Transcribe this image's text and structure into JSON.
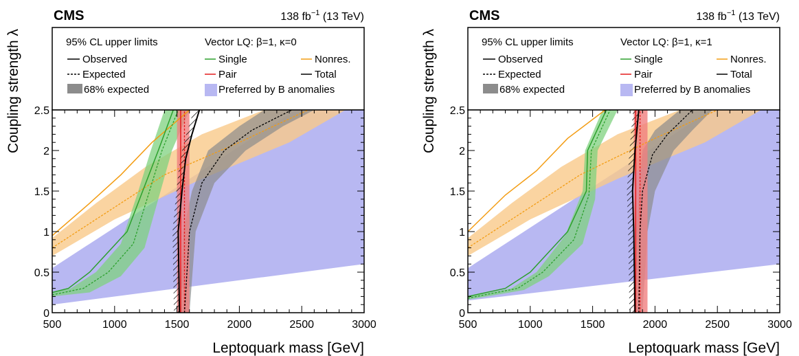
{
  "colors": {
    "single": "#2ca02c",
    "single_band": "#7fd17f",
    "pair": "#e41a1c",
    "pair_band": "#f08080",
    "nonres": "#f39c12",
    "nonres_band": "#f9c98a",
    "total": "#000000",
    "total_band": "#8c8c8c",
    "banom": "#b8b8f2"
  },
  "chart_data": [
    {
      "type": "line",
      "experiment": "CMS",
      "lumi_text": "138 fb",
      "lumi_sup": "−1",
      "energy_text": " (13 TeV)",
      "xlabel": "Leptoquark mass [GeV]",
      "ylabel": "Coupling strength λ",
      "xlim": [
        500,
        3000
      ],
      "ylim": [
        0,
        2.5
      ],
      "x_ticks": [
        "500",
        "1000",
        "1500",
        "2000",
        "2500",
        "3000"
      ],
      "y_ticks": [
        "0",
        "0.5",
        "1",
        "1.5",
        "2",
        "2.5"
      ],
      "legend": {
        "header_left": "95% CL upper limits",
        "header_right": "Vector LQ: β=1, κ=0",
        "observed": "Observed",
        "expected": "Expected",
        "band68": "68% expected",
        "single": "Single",
        "pair": "Pair",
        "nonres": "Nonres.",
        "total": "Total",
        "banom": "Preferred by B anomalies"
      },
      "banom": {
        "lower": [
          [
            500,
            0.1
          ],
          [
            3000,
            0.6
          ]
        ],
        "upper": [
          [
            500,
            0.55
          ],
          [
            2450,
            2.5
          ]
        ],
        "top_right_x": 3000
      },
      "nonres": {
        "obs": [
          [
            500,
            0.95
          ],
          [
            800,
            1.35
          ],
          [
            1050,
            1.7
          ],
          [
            1300,
            2.1
          ],
          [
            1600,
            2.5
          ]
        ],
        "exp": [
          [
            500,
            0.8
          ],
          [
            900,
            1.2
          ],
          [
            1400,
            1.7
          ],
          [
            2000,
            2.1
          ],
          [
            2550,
            2.5
          ]
        ],
        "band_lo": [
          [
            500,
            0.7
          ],
          [
            1000,
            1.15
          ],
          [
            1700,
            1.65
          ],
          [
            2400,
            2.1
          ],
          [
            2850,
            2.5
          ]
        ],
        "band_hi": [
          [
            500,
            0.92
          ],
          [
            850,
            1.35
          ],
          [
            1250,
            1.8
          ],
          [
            1700,
            2.2
          ],
          [
            2200,
            2.5
          ]
        ]
      },
      "single": {
        "obs": [
          [
            500,
            0.25
          ],
          [
            630,
            0.3
          ],
          [
            800,
            0.5
          ],
          [
            1100,
            1.0
          ],
          [
            1350,
            2.0
          ],
          [
            1470,
            2.5
          ]
        ],
        "exp": [
          [
            500,
            0.22
          ],
          [
            750,
            0.3
          ],
          [
            950,
            0.5
          ],
          [
            1150,
            0.85
          ],
          [
            1280,
            1.5
          ],
          [
            1380,
            2.0
          ],
          [
            1510,
            2.5
          ]
        ],
        "band_lo": [
          [
            500,
            0.2
          ],
          [
            800,
            0.25
          ],
          [
            1050,
            0.45
          ],
          [
            1240,
            0.8
          ],
          [
            1350,
            1.4
          ],
          [
            1460,
            2.0
          ],
          [
            1600,
            2.5
          ]
        ],
        "band_hi": [
          [
            500,
            0.25
          ],
          [
            650,
            0.3
          ],
          [
            850,
            0.5
          ],
          [
            1050,
            0.85
          ],
          [
            1190,
            1.5
          ],
          [
            1290,
            2.0
          ],
          [
            1400,
            2.5
          ]
        ]
      },
      "pair": {
        "obs": [
          [
            1530,
            0
          ],
          [
            1530,
            2.5
          ]
        ],
        "exp": [
          [
            1560,
            0
          ],
          [
            1560,
            2.5
          ]
        ],
        "band": [
          1500,
          1600
        ]
      },
      "total": {
        "obs": [
          [
            1520,
            0
          ],
          [
            1510,
            1.0
          ],
          [
            1540,
            1.5
          ],
          [
            1570,
            1.9
          ],
          [
            1620,
            2.2
          ],
          [
            1680,
            2.5
          ]
        ],
        "exp": [
          [
            1560,
            0
          ],
          [
            1600,
            1.0
          ],
          [
            1700,
            1.6
          ],
          [
            1880,
            2.0
          ],
          [
            2100,
            2.25
          ],
          [
            2420,
            2.5
          ]
        ],
        "band_lo": [
          [
            1600,
            0
          ],
          [
            1650,
            1.0
          ],
          [
            1800,
            1.6
          ],
          [
            2050,
            2.0
          ],
          [
            2350,
            2.3
          ],
          [
            2600,
            2.5
          ]
        ],
        "band_hi": [
          [
            1520,
            0
          ],
          [
            1550,
            1.0
          ],
          [
            1620,
            1.5
          ],
          [
            1750,
            2.0
          ],
          [
            2000,
            2.3
          ],
          [
            2200,
            2.5
          ]
        ]
      }
    },
    {
      "type": "line",
      "experiment": "CMS",
      "lumi_text": "138 fb",
      "lumi_sup": "−1",
      "energy_text": " (13 TeV)",
      "xlabel": "Leptoquark mass [GeV]",
      "ylabel": "Coupling strength λ",
      "xlim": [
        500,
        3000
      ],
      "ylim": [
        0,
        2.5
      ],
      "x_ticks": [
        "500",
        "1000",
        "1500",
        "2000",
        "2500",
        "3000"
      ],
      "y_ticks": [
        "0",
        "0.5",
        "1",
        "1.5",
        "2",
        "2.5"
      ],
      "legend": {
        "header_left": "95% CL upper limits",
        "header_right": "Vector LQ: β=1, κ=1",
        "observed": "Observed",
        "expected": "Expected",
        "band68": "68% expected",
        "single": "Single",
        "pair": "Pair",
        "nonres": "Nonres.",
        "total": "Total",
        "banom": "Preferred by B anomalies"
      },
      "banom": {
        "lower": [
          [
            500,
            0.15
          ],
          [
            3000,
            0.6
          ]
        ],
        "upper": [
          [
            500,
            0.55
          ],
          [
            2450,
            2.5
          ]
        ],
        "top_right_x": 3000
      },
      "nonres": {
        "obs": [
          [
            500,
            1.0
          ],
          [
            800,
            1.45
          ],
          [
            1050,
            1.75
          ],
          [
            1300,
            2.15
          ],
          [
            1600,
            2.5
          ]
        ],
        "exp": [
          [
            500,
            0.8
          ],
          [
            900,
            1.2
          ],
          [
            1400,
            1.7
          ],
          [
            2000,
            2.15
          ],
          [
            2500,
            2.5
          ]
        ],
        "band_lo": [
          [
            500,
            0.7
          ],
          [
            1000,
            1.15
          ],
          [
            1700,
            1.65
          ],
          [
            2400,
            2.1
          ],
          [
            2850,
            2.5
          ]
        ],
        "band_hi": [
          [
            500,
            0.92
          ],
          [
            850,
            1.35
          ],
          [
            1250,
            1.8
          ],
          [
            1700,
            2.2
          ],
          [
            2200,
            2.5
          ]
        ]
      },
      "single": {
        "obs": [
          [
            500,
            0.2
          ],
          [
            800,
            0.3
          ],
          [
            1000,
            0.5
          ],
          [
            1300,
            1.0
          ],
          [
            1450,
            1.5
          ],
          [
            1460,
            2.0
          ],
          [
            1610,
            2.5
          ]
        ],
        "exp": [
          [
            500,
            0.18
          ],
          [
            900,
            0.3
          ],
          [
            1100,
            0.5
          ],
          [
            1350,
            0.9
          ],
          [
            1470,
            1.45
          ],
          [
            1490,
            2.0
          ],
          [
            1640,
            2.5
          ]
        ],
        "band_lo": [
          [
            500,
            0.16
          ],
          [
            950,
            0.28
          ],
          [
            1150,
            0.45
          ],
          [
            1420,
            0.85
          ],
          [
            1520,
            1.4
          ],
          [
            1540,
            2.0
          ],
          [
            1700,
            2.5
          ]
        ],
        "band_hi": [
          [
            500,
            0.2
          ],
          [
            850,
            0.3
          ],
          [
            1050,
            0.5
          ],
          [
            1280,
            0.95
          ],
          [
            1420,
            1.5
          ],
          [
            1440,
            2.0
          ],
          [
            1580,
            2.5
          ]
        ]
      },
      "pair": {
        "obs": [
          [
            1845,
            0
          ],
          [
            1845,
            2.5
          ]
        ],
        "exp": [
          [
            1880,
            0
          ],
          [
            1880,
            2.5
          ]
        ],
        "band": [
          1830,
          1940
        ]
      },
      "total": {
        "obs": [
          [
            1840,
            0
          ],
          [
            1830,
            1.0
          ],
          [
            1820,
            1.5
          ],
          [
            1840,
            2.0
          ],
          [
            1870,
            2.5
          ]
        ],
        "exp": [
          [
            1870,
            0
          ],
          [
            1880,
            1.0
          ],
          [
            1900,
            1.5
          ],
          [
            1980,
            1.95
          ],
          [
            2100,
            2.2
          ],
          [
            2300,
            2.5
          ]
        ],
        "band_lo": [
          [
            1900,
            0
          ],
          [
            1940,
            1.0
          ],
          [
            2000,
            1.5
          ],
          [
            2150,
            2.0
          ],
          [
            2300,
            2.25
          ],
          [
            2460,
            2.5
          ]
        ],
        "band_hi": [
          [
            1840,
            0
          ],
          [
            1850,
            1.0
          ],
          [
            1870,
            1.5
          ],
          [
            1900,
            2.0
          ],
          [
            2000,
            2.25
          ],
          [
            2200,
            2.5
          ]
        ]
      }
    }
  ]
}
